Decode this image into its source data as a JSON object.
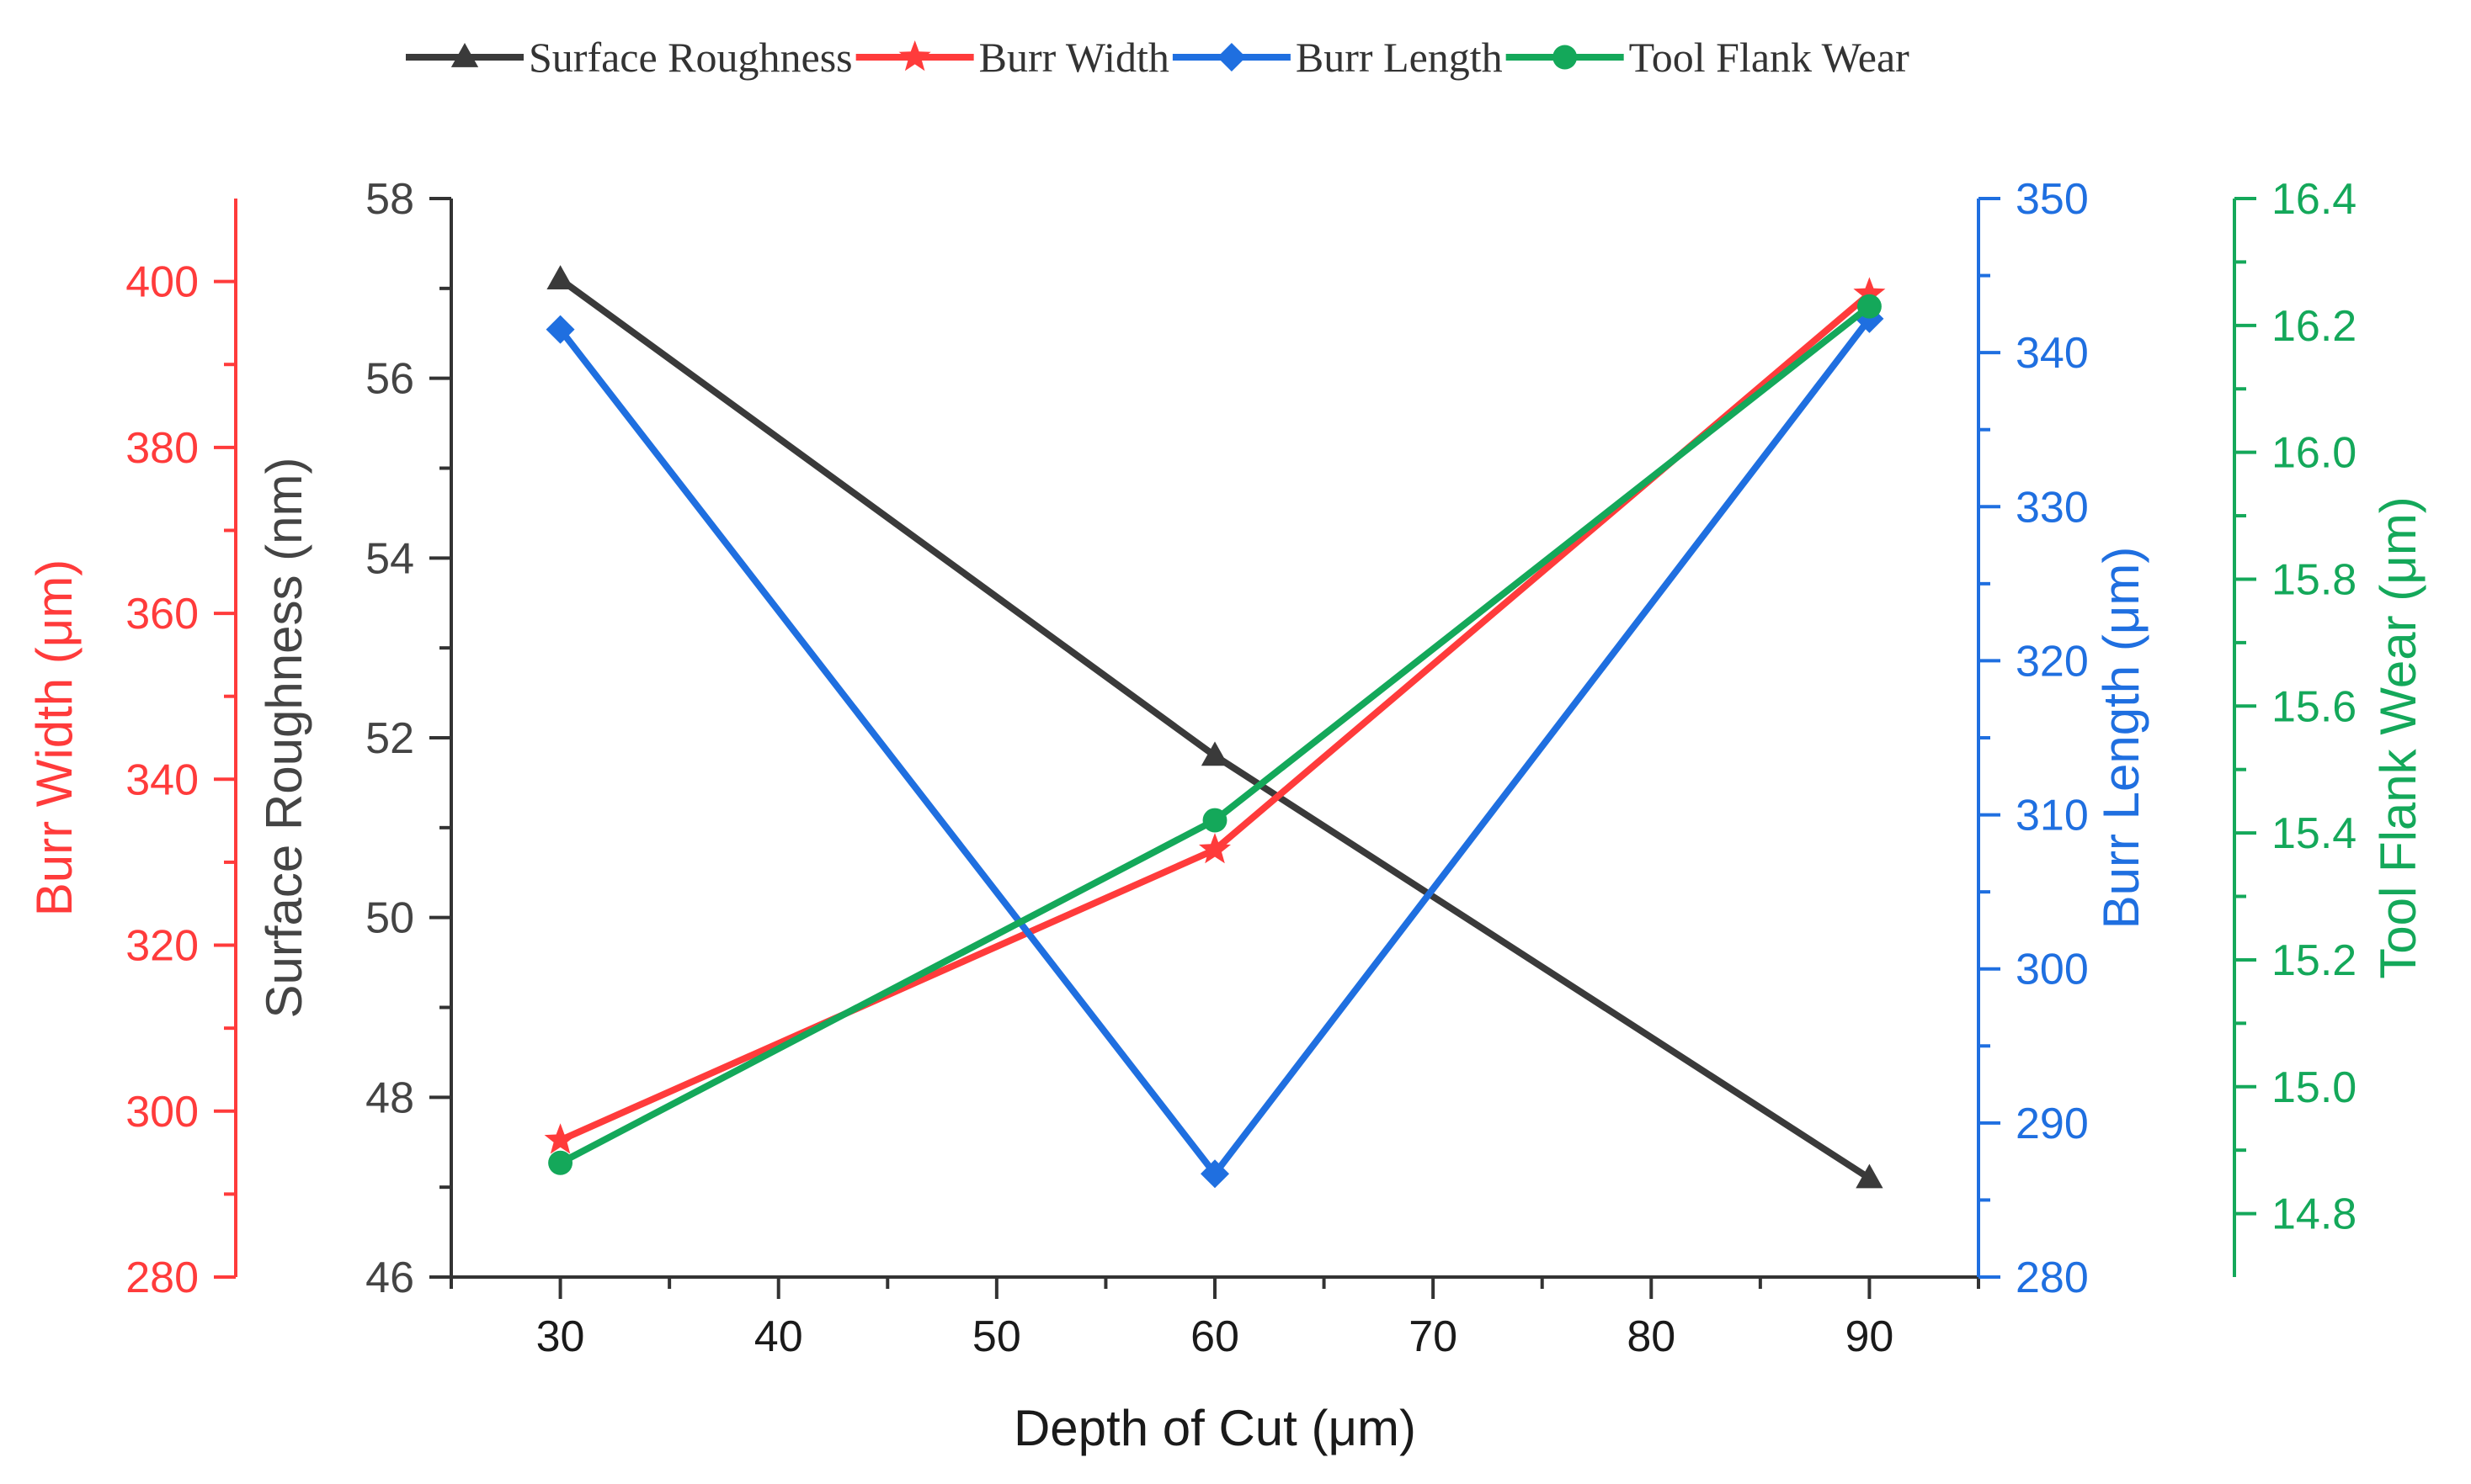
{
  "chart_data": {
    "type": "line",
    "x": [
      30,
      60,
      90
    ],
    "xlabel": "Depth of Cut (μm)",
    "xlim": [
      25,
      95
    ],
    "xticks": [
      30,
      40,
      50,
      60,
      70,
      80,
      90
    ],
    "legend_position": "top",
    "series": [
      {
        "name": "Surface Roughness",
        "axis": "left-inner",
        "ylabel": "Surface Roughness (nm)",
        "ylim": [
          46,
          58
        ],
        "yticks": [
          46,
          48,
          50,
          52,
          54,
          56,
          58
        ],
        "values": [
          57.1,
          51.8,
          47.1
        ],
        "color": "#3a3a3a",
        "marker": "triangle"
      },
      {
        "name": "Burr Width",
        "axis": "left-outer",
        "ylabel": "Burr Width (μm)",
        "ylim": [
          280,
          410
        ],
        "yticks": [
          280,
          300,
          320,
          340,
          360,
          380,
          400
        ],
        "values": [
          296.5,
          331.5,
          398.5
        ],
        "color": "#ff3b3b",
        "marker": "star"
      },
      {
        "name": "Burr Length",
        "axis": "right-inner",
        "ylabel": "Burr Length (μm)",
        "ylim": [
          280,
          350
        ],
        "yticks": [
          280,
          290,
          300,
          310,
          320,
          330,
          340,
          350
        ],
        "values": [
          341.5,
          286.7,
          342.2
        ],
        "color": "#1f6fe0",
        "marker": "diamond"
      },
      {
        "name": "Tool Flank Wear",
        "axis": "right-outer",
        "ylabel": "Tool Flank Wear (μm)",
        "ylim": [
          14.7,
          16.4
        ],
        "yticks": [
          14.8,
          15.0,
          15.2,
          15.4,
          15.6,
          15.8,
          16.0,
          16.2,
          16.4
        ],
        "values": [
          14.88,
          15.42,
          16.23
        ],
        "color": "#14a85a",
        "marker": "circle"
      }
    ]
  }
}
